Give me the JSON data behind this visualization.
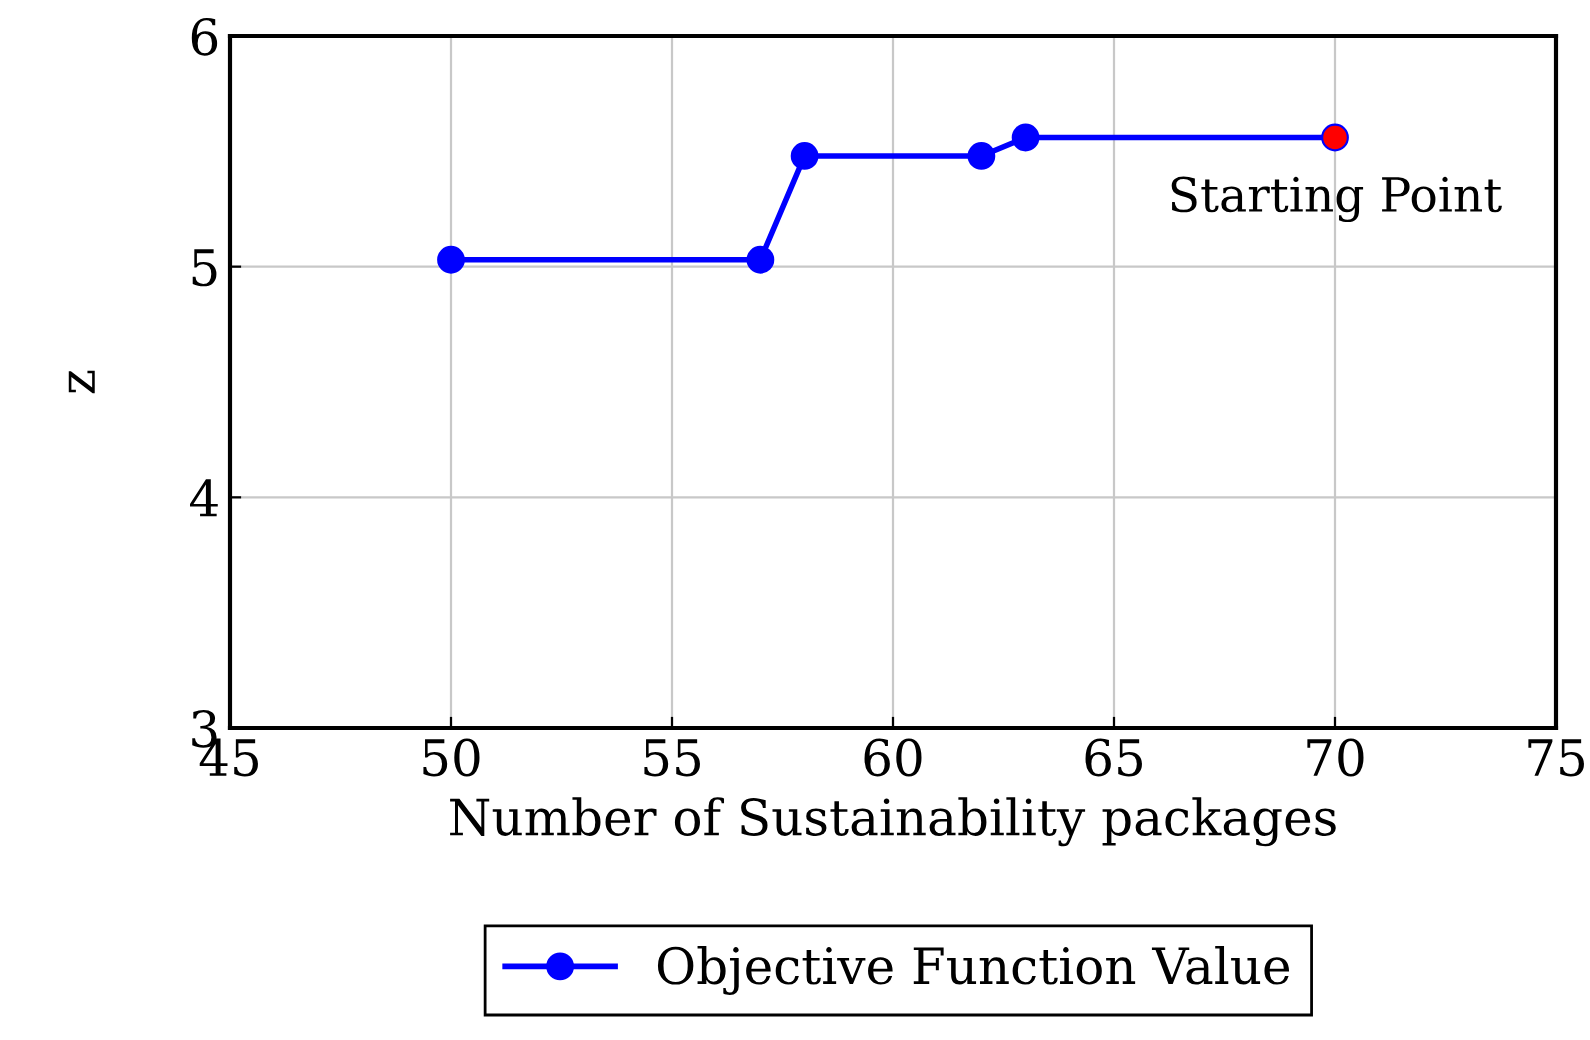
{
  "chart_data": {
    "type": "line",
    "xlabel": "Number of Sustainability packages",
    "ylabel": "z",
    "xlim": [
      45,
      75
    ],
    "xticks": [
      45,
      50,
      55,
      60,
      65,
      70,
      75
    ],
    "ylim": [
      3,
      6
    ],
    "yticks": [
      3,
      4,
      5,
      6
    ],
    "grid": true,
    "legend": "bottom",
    "marker": "circle",
    "line_style": "solid",
    "series": [
      {
        "name": "Objective Function Value",
        "color": "#0000ff",
        "x": [
          50,
          57,
          58,
          62,
          63,
          70
        ],
        "values": [
          5.03,
          5.03,
          5.48,
          5.48,
          5.56,
          5.56
        ]
      },
      {
        "type": "scatter",
        "color": "#ff0000",
        "x": [
          70
        ],
        "values": [
          5.56
        ]
      }
    ],
    "annotations": [
      {
        "text": "Starting Point",
        "x": 70,
        "y": 5.56
      }
    ]
  }
}
